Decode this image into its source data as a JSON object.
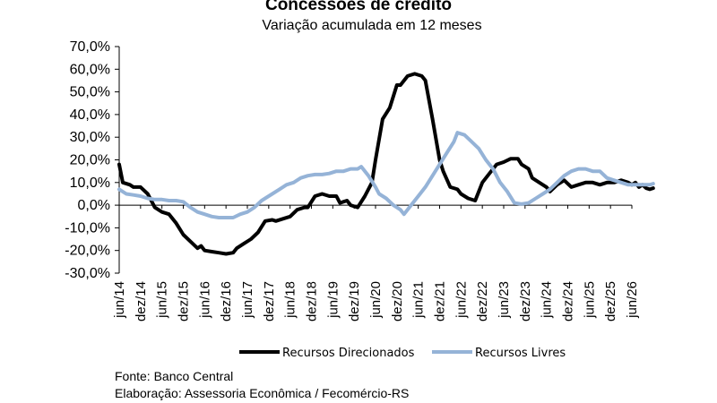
{
  "chart_data": {
    "type": "line",
    "title": "Concessões  de crédito",
    "subtitle": "Variação acumulada em 12 meses",
    "ylim": [
      -30,
      70
    ],
    "y_ticks": [
      "70,0%",
      "60,0%",
      "50,0%",
      "40,0%",
      "30,0%",
      "20,0%",
      "10,0%",
      "0,0%",
      "-10,0%",
      "-20,0%",
      "-30,0%"
    ],
    "x_ticks": [
      "jun/14",
      "dez/14",
      "jun/15",
      "dez/15",
      "jun/16",
      "dez/16",
      "jun/17",
      "dez/17",
      "jun/18",
      "dez/18",
      "jun/19",
      "dez/19",
      "jun/20",
      "dez/20",
      "jun/21",
      "dez/21",
      "jun/22",
      "dez/22",
      "jun/23",
      "dez/23",
      "jun/24",
      "dez/24",
      "jun/25",
      "dez/25",
      "jun/26"
    ],
    "x_start": "2014-06",
    "x_end": "2026-06",
    "grid": false,
    "legend": "bottom",
    "series": [
      {
        "name": "Recursos Direcionados",
        "color": "#000000",
        "points": [
          [
            "2014-06",
            18
          ],
          [
            "2014-07",
            10
          ],
          [
            "2014-09",
            9
          ],
          [
            "2014-10",
            8
          ],
          [
            "2014-12",
            8
          ],
          [
            "2015-02",
            5
          ],
          [
            "2015-03",
            2
          ],
          [
            "2015-04",
            -1
          ],
          [
            "2015-06",
            -3
          ],
          [
            "2015-08",
            -4
          ],
          [
            "2015-10",
            -8
          ],
          [
            "2015-12",
            -13
          ],
          [
            "2016-02",
            -16
          ],
          [
            "2016-04",
            -19
          ],
          [
            "2016-05",
            -18
          ],
          [
            "2016-06",
            -20
          ],
          [
            "2016-08",
            -20.5
          ],
          [
            "2016-10",
            -21
          ],
          [
            "2016-12",
            -21.5
          ],
          [
            "2017-02",
            -21
          ],
          [
            "2017-03",
            -19
          ],
          [
            "2017-05",
            -17
          ],
          [
            "2017-07",
            -15
          ],
          [
            "2017-09",
            -12
          ],
          [
            "2017-11",
            -7
          ],
          [
            "2018-01",
            -6.5
          ],
          [
            "2018-02",
            -7
          ],
          [
            "2018-04",
            -6
          ],
          [
            "2018-06",
            -5
          ],
          [
            "2018-08",
            -2
          ],
          [
            "2018-10",
            -1
          ],
          [
            "2018-11",
            -1
          ],
          [
            "2019-01",
            4
          ],
          [
            "2019-03",
            5
          ],
          [
            "2019-05",
            4
          ],
          [
            "2019-07",
            4
          ],
          [
            "2019-08",
            1
          ],
          [
            "2019-10",
            2
          ],
          [
            "2019-11",
            0
          ],
          [
            "2020-01",
            -1
          ],
          [
            "2020-03",
            4
          ],
          [
            "2020-05",
            10
          ],
          [
            "2020-06",
            20
          ],
          [
            "2020-08",
            38
          ],
          [
            "2020-10",
            43
          ],
          [
            "2020-12",
            53
          ],
          [
            "2021-01",
            53
          ],
          [
            "2021-03",
            57
          ],
          [
            "2021-05",
            58
          ],
          [
            "2021-07",
            57
          ],
          [
            "2021-08",
            55
          ],
          [
            "2021-10",
            38
          ],
          [
            "2021-12",
            20
          ],
          [
            "2022-01",
            15
          ],
          [
            "2022-03",
            8
          ],
          [
            "2022-05",
            7
          ],
          [
            "2022-06",
            5
          ],
          [
            "2022-08",
            3
          ],
          [
            "2022-10",
            2
          ],
          [
            "2022-12",
            10
          ],
          [
            "2023-02",
            14
          ],
          [
            "2023-04",
            18
          ],
          [
            "2023-06",
            19
          ],
          [
            "2023-08",
            20.5
          ],
          [
            "2023-10",
            20.5
          ],
          [
            "2023-11",
            18
          ],
          [
            "2024-01",
            16
          ],
          [
            "2024-02",
            12
          ],
          [
            "2024-04",
            10
          ],
          [
            "2024-06",
            8
          ],
          [
            "2024-07",
            6
          ],
          [
            "2024-09",
            9
          ],
          [
            "2024-11",
            11
          ],
          [
            "2025-01",
            8
          ],
          [
            "2025-03",
            9
          ],
          [
            "2025-05",
            10
          ],
          [
            "2025-07",
            10
          ],
          [
            "2025-09",
            9
          ],
          [
            "2025-11",
            10
          ],
          [
            "2026-01",
            10
          ],
          [
            "2026-03",
            11
          ],
          [
            "2026-05",
            10
          ],
          [
            "2026-06",
            9
          ],
          [
            "2026-07",
            10
          ],
          [
            "2026-08",
            8
          ],
          [
            "2026-09",
            9
          ],
          [
            "2026-10",
            7.5
          ],
          [
            "2026-11",
            7
          ],
          [
            "2026-12",
            7.5
          ]
        ]
      },
      {
        "name": "Recursos Livres",
        "color": "#95b3d7",
        "points": [
          [
            "2014-06",
            7
          ],
          [
            "2014-08",
            5
          ],
          [
            "2014-10",
            4.5
          ],
          [
            "2014-12",
            4
          ],
          [
            "2015-02",
            3
          ],
          [
            "2015-04",
            2.5
          ],
          [
            "2015-06",
            2.5
          ],
          [
            "2015-08",
            2
          ],
          [
            "2015-10",
            2
          ],
          [
            "2015-12",
            1.5
          ],
          [
            "2016-02",
            -1
          ],
          [
            "2016-04",
            -3
          ],
          [
            "2016-06",
            -4
          ],
          [
            "2016-08",
            -5
          ],
          [
            "2016-10",
            -5.5
          ],
          [
            "2016-12",
            -5.5
          ],
          [
            "2017-02",
            -5.5
          ],
          [
            "2017-04",
            -4
          ],
          [
            "2017-06",
            -3
          ],
          [
            "2017-08",
            -1
          ],
          [
            "2017-10",
            2
          ],
          [
            "2017-12",
            4
          ],
          [
            "2018-01",
            5
          ],
          [
            "2018-03",
            7
          ],
          [
            "2018-05",
            9
          ],
          [
            "2018-07",
            10
          ],
          [
            "2018-09",
            12
          ],
          [
            "2018-11",
            13
          ],
          [
            "2019-01",
            13.5
          ],
          [
            "2019-03",
            13.5
          ],
          [
            "2019-05",
            14
          ],
          [
            "2019-07",
            15
          ],
          [
            "2019-09",
            15
          ],
          [
            "2019-11",
            16
          ],
          [
            "2020-01",
            16
          ],
          [
            "2020-02",
            17
          ],
          [
            "2020-04",
            13
          ],
          [
            "2020-06",
            8
          ],
          [
            "2020-07",
            5
          ],
          [
            "2020-09",
            3
          ],
          [
            "2020-11",
            0
          ],
          [
            "2021-01",
            -2
          ],
          [
            "2021-02",
            -4
          ],
          [
            "2021-04",
            0
          ],
          [
            "2021-06",
            4
          ],
          [
            "2021-08",
            8
          ],
          [
            "2021-10",
            13
          ],
          [
            "2021-12",
            18
          ],
          [
            "2022-02",
            23
          ],
          [
            "2022-04",
            28
          ],
          [
            "2022-05",
            32
          ],
          [
            "2022-07",
            31
          ],
          [
            "2022-09",
            28
          ],
          [
            "2022-11",
            25
          ],
          [
            "2023-01",
            20
          ],
          [
            "2023-03",
            16
          ],
          [
            "2023-05",
            10
          ],
          [
            "2023-07",
            6
          ],
          [
            "2023-09",
            1
          ],
          [
            "2023-11",
            0.5
          ],
          [
            "2024-01",
            1
          ],
          [
            "2024-03",
            3
          ],
          [
            "2024-05",
            5
          ],
          [
            "2024-07",
            7
          ],
          [
            "2024-09",
            10
          ],
          [
            "2024-11",
            13
          ],
          [
            "2025-01",
            15
          ],
          [
            "2025-03",
            16
          ],
          [
            "2025-05",
            16
          ],
          [
            "2025-07",
            15
          ],
          [
            "2025-09",
            15
          ],
          [
            "2025-11",
            12
          ],
          [
            "2026-01",
            11
          ],
          [
            "2026-03",
            10
          ],
          [
            "2026-05",
            9
          ],
          [
            "2026-07",
            9
          ],
          [
            "2026-09",
            9
          ],
          [
            "2026-11",
            9
          ],
          [
            "2026-12",
            9.5
          ]
        ]
      }
    ]
  },
  "footer": {
    "source": "Fonte: Banco Central",
    "credit": "Elaboração: Assessoria Econômica / Fecomércio-RS"
  }
}
